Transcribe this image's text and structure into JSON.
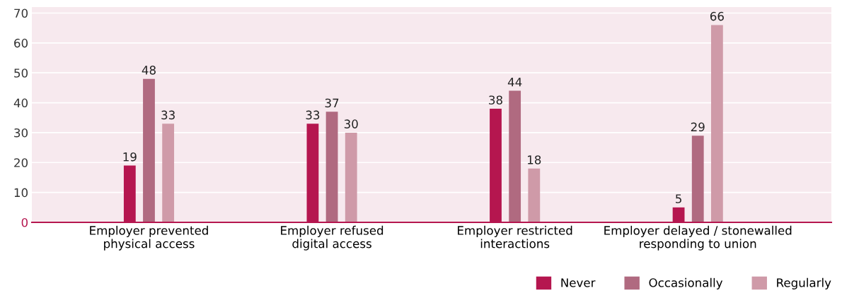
{
  "chart_data": {
    "type": "bar",
    "categories": [
      "Employer prevented\nphysical access",
      "Employer refused\ndigital access",
      "Employer restricted\ninteractions",
      "Employer delayed / stonewalled\nresponding to union"
    ],
    "series": [
      {
        "name": "Never",
        "color": "#b5164f",
        "values": [
          19,
          33,
          38,
          5
        ]
      },
      {
        "name": "Occasionally",
        "color": "#b06a80",
        "values": [
          48,
          37,
          44,
          29
        ]
      },
      {
        "name": "Regularly",
        "color": "#cf9aa8",
        "values": [
          33,
          30,
          18,
          66
        ]
      }
    ],
    "ylim": [
      0,
      72
    ],
    "yticks": [
      0,
      10,
      20,
      30,
      40,
      50,
      60,
      70
    ],
    "grid": "y",
    "legend": "bottom right",
    "data_labels": true
  }
}
